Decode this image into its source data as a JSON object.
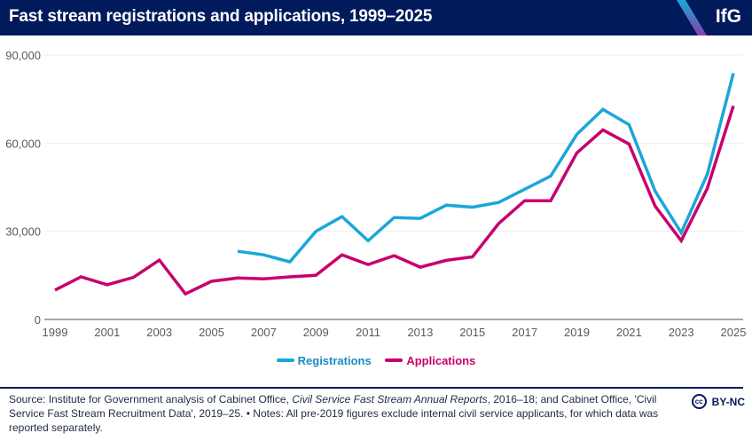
{
  "header": {
    "title": "Fast stream registrations and applications, 1999–2025",
    "logo": "IfG"
  },
  "colors": {
    "header_bg": "#001a5c",
    "registrations": "#1ba6d9",
    "applications": "#c8006e",
    "grid": "#eeeeee",
    "axis": "#8a8a8a"
  },
  "chart_data": {
    "type": "line",
    "title": "Fast stream registrations and applications, 1999–2025",
    "xlabel": "",
    "ylabel": "",
    "x": [
      1999,
      2000,
      2001,
      2002,
      2003,
      2004,
      2005,
      2006,
      2007,
      2008,
      2009,
      2010,
      2011,
      2012,
      2013,
      2014,
      2015,
      2016,
      2017,
      2018,
      2019,
      2020,
      2021,
      2022,
      2023,
      2024,
      2025
    ],
    "xlim": [
      1999,
      2025
    ],
    "ylim": [
      0,
      90000
    ],
    "yticks": [
      0,
      30000,
      60000,
      90000
    ],
    "ytick_labels": [
      "0",
      "30,000",
      "60,000",
      "90,000"
    ],
    "xticks": [
      1999,
      2001,
      2003,
      2005,
      2007,
      2009,
      2011,
      2013,
      2015,
      2017,
      2019,
      2021,
      2023,
      2025
    ],
    "xtick_labels": [
      "1999",
      "2001",
      "2003",
      "2005",
      "2007",
      "2009",
      "2011",
      "2013",
      "2015",
      "2017",
      "2019",
      "2021",
      "2023",
      "2025"
    ],
    "grid": true,
    "legend_position": "bottom-center",
    "series": [
      {
        "name": "Registrations",
        "color": "#1ba6d9",
        "values": [
          null,
          null,
          null,
          null,
          null,
          null,
          null,
          23200,
          22000,
          19600,
          30000,
          35000,
          26800,
          34700,
          34400,
          38900,
          38200,
          39800,
          44300,
          48800,
          63000,
          71500,
          66300,
          43700,
          29500,
          49400,
          83800
        ]
      },
      {
        "name": "Applications",
        "color": "#c8006e",
        "values": [
          10000,
          14500,
          11800,
          14300,
          20200,
          8700,
          13000,
          14100,
          13800,
          14500,
          15000,
          22000,
          18700,
          21700,
          17800,
          20100,
          21300,
          32600,
          40400,
          40400,
          56700,
          64500,
          59700,
          38600,
          26800,
          44600,
          72700
        ]
      }
    ]
  },
  "legend": {
    "items": [
      {
        "label": "Registrations",
        "color": "#1ba6d9"
      },
      {
        "label": "Applications",
        "color": "#c8006e"
      }
    ]
  },
  "footer": {
    "source_prefix": "Source: Institute for Government analysis of Cabinet Office, ",
    "source_italic": "Civil Service Fast Stream Annual Reports",
    "source_suffix": ", 2016–18; and Cabinet Office, 'Civil Service Fast Stream Recruitment Data', 2019–25. • Notes: All pre-2019 figures exclude internal civil service applicants, for which data was reported separately.",
    "license_icon": "cc",
    "license_label": "BY-NC"
  }
}
